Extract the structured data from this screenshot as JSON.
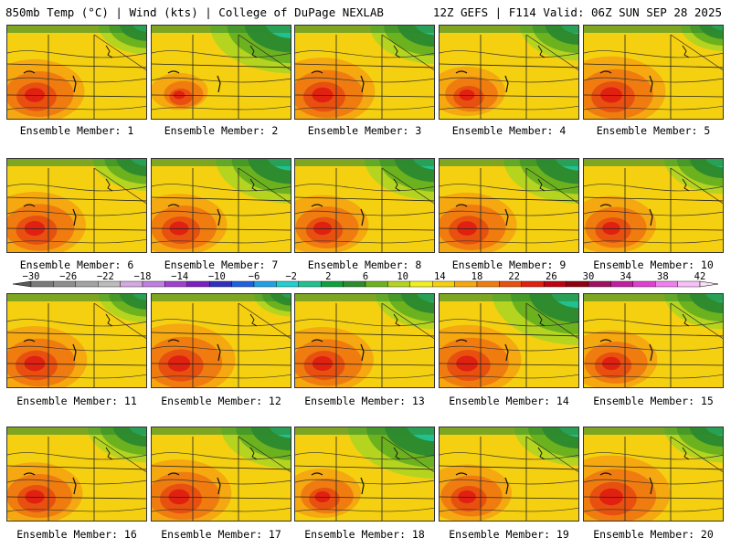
{
  "header": {
    "left": "850mb Temp (°C) | Wind (kts) | College of DuPage NEXLAB",
    "right": "12Z GEFS | F114 Valid: 06Z SUN SEP 28 2025"
  },
  "members": [
    {
      "label": "Ensemble Member: 1",
      "warmth": 0.78,
      "cool_ne": 0.45
    },
    {
      "label": "Ensemble Member: 2",
      "warmth": 0.45,
      "cool_ne": 0.75
    },
    {
      "label": "Ensemble Member: 3",
      "warmth": 0.82,
      "cool_ne": 0.6
    },
    {
      "label": "Ensemble Member: 4",
      "warmth": 0.6,
      "cool_ne": 0.55
    },
    {
      "label": "Ensemble Member: 5",
      "warmth": 0.85,
      "cool_ne": 0.4
    },
    {
      "label": "Ensemble Member: 6",
      "warmth": 0.8,
      "cool_ne": 0.5
    },
    {
      "label": "Ensemble Member: 7",
      "warmth": 0.75,
      "cool_ne": 0.7
    },
    {
      "label": "Ensemble Member: 8",
      "warmth": 0.72,
      "cool_ne": 0.65
    },
    {
      "label": "Ensemble Member: 9",
      "warmth": 0.78,
      "cool_ne": 0.7
    },
    {
      "label": "Ensemble Member: 10",
      "warmth": 0.7,
      "cool_ne": 0.55
    },
    {
      "label": "Ensemble Member: 11",
      "warmth": 0.82,
      "cool_ne": 0.45
    },
    {
      "label": "Ensemble Member: 12",
      "warmth": 0.88,
      "cool_ne": 0.35
    },
    {
      "label": "Ensemble Member: 13",
      "warmth": 0.8,
      "cool_ne": 0.55
    },
    {
      "label": "Ensemble Member: 14",
      "warmth": 0.85,
      "cool_ne": 0.8
    },
    {
      "label": "Ensemble Member: 15",
      "warmth": 0.72,
      "cool_ne": 0.55
    },
    {
      "label": "Ensemble Member: 16",
      "warmth": 0.75,
      "cool_ne": 0.55
    },
    {
      "label": "Ensemble Member: 17",
      "warmth": 0.82,
      "cool_ne": 0.65
    },
    {
      "label": "Ensemble Member: 18",
      "warmth": 0.6,
      "cool_ne": 0.8
    },
    {
      "label": "Ensemble Member: 19",
      "warmth": 0.7,
      "cool_ne": 0.6
    },
    {
      "label": "Ensemble Member: 20",
      "warmth": 0.92,
      "cool_ne": 0.55
    }
  ],
  "colorbar": {
    "ticks": [
      "−30",
      "−26",
      "−22",
      "−18",
      "−14",
      "−10",
      "−6",
      "−2",
      "2",
      "6",
      "10",
      "14",
      "18",
      "22",
      "26",
      "30",
      "34",
      "38",
      "42"
    ],
    "colors": [
      "#7a7a7a",
      "#8e8e8e",
      "#a3a3a3",
      "#bcbcbc",
      "#d4a8e0",
      "#c080e0",
      "#a040d0",
      "#7a20c0",
      "#3030c0",
      "#2060e0",
      "#20a0e8",
      "#20d0d0",
      "#20c090",
      "#10a040",
      "#2e8b2e",
      "#6cb21f",
      "#b5d41f",
      "#f0f020",
      "#f5d010",
      "#f5a810",
      "#f07c10",
      "#e85010",
      "#e02010",
      "#c00010",
      "#900010",
      "#a01060",
      "#c020a0",
      "#e040d0",
      "#f080f0",
      "#f8c0f8"
    ]
  }
}
